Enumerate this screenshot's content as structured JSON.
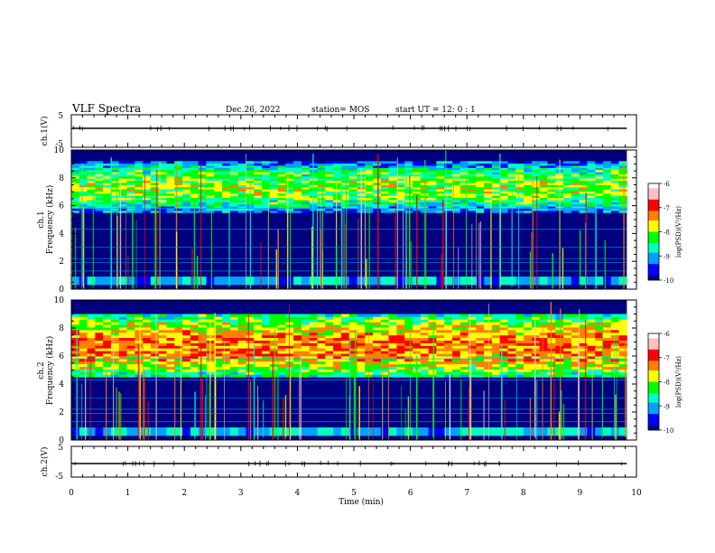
{
  "header": {
    "title": "VLF Spectra",
    "date": "Dec.26, 2022",
    "station": "station= MOS",
    "start": "start  UT =   12: 0  : 1"
  },
  "chart_data": [
    {
      "type": "line",
      "ylabel": "ch.1(V)",
      "ylim": [
        -5,
        5
      ],
      "yticks": [
        "5",
        "-5"
      ],
      "x": [
        0,
        10
      ],
      "y": [
        0,
        0
      ]
    },
    {
      "type": "heatmap",
      "ylabel": "ch.1\nFrequency (kHz)",
      "ylabel_lines": [
        "ch.1",
        "Frequency (kHz)"
      ],
      "ylim": [
        0,
        10
      ],
      "yticks": [
        "0",
        "2",
        "4",
        "6",
        "8",
        "10"
      ],
      "xlim": [
        0,
        10
      ],
      "colorbar": {
        "label": "log(PSD)(V²/Hz)",
        "range": [
          -10,
          -6
        ],
        "ticks": [
          "-6",
          "-7",
          "-8",
          "-9",
          "-10"
        ],
        "colors": [
          "#000080",
          "#0000ff",
          "#00a0ff",
          "#00ffc0",
          "#00ff00",
          "#ffff00",
          "#ff8000",
          "#ff0000",
          "#ffc0c0",
          "#ffffff"
        ]
      },
      "band_kHz": [
        5.5,
        9.2
      ],
      "band_level": -8.2
    },
    {
      "type": "heatmap",
      "ylabel": "ch.2\nFrequency (kHz)",
      "ylabel_lines": [
        "ch.2",
        "Frequency (kHz)"
      ],
      "ylim": [
        0,
        10
      ],
      "yticks": [
        "0",
        "2",
        "4",
        "6",
        "8",
        "10"
      ],
      "xlim": [
        0,
        10
      ],
      "colorbar": {
        "label": "log(PSD)(V²/Hz)",
        "range": [
          -10,
          -6
        ],
        "ticks": [
          "-6",
          "-7",
          "-8",
          "-9",
          "-10"
        ],
        "colors": [
          "#000080",
          "#0000ff",
          "#00a0ff",
          "#00ffc0",
          "#00ff00",
          "#ffff00",
          "#ff8000",
          "#ff0000",
          "#ffc0c0",
          "#ffffff"
        ]
      },
      "band_kHz": [
        4.5,
        9.0
      ],
      "band_level": -7.5
    },
    {
      "type": "line",
      "ylabel": "ch.2(V)",
      "ylim": [
        -5,
        5
      ],
      "yticks": [
        "5",
        "-5"
      ],
      "x": [
        0,
        10
      ],
      "y": [
        0,
        0
      ]
    }
  ],
  "xaxis": {
    "label": "Time (min)",
    "range": [
      0,
      10
    ],
    "ticks": [
      "0",
      "1",
      "2",
      "3",
      "4",
      "5",
      "6",
      "7",
      "8",
      "9",
      "10"
    ],
    "data_end_min": 9.83
  }
}
